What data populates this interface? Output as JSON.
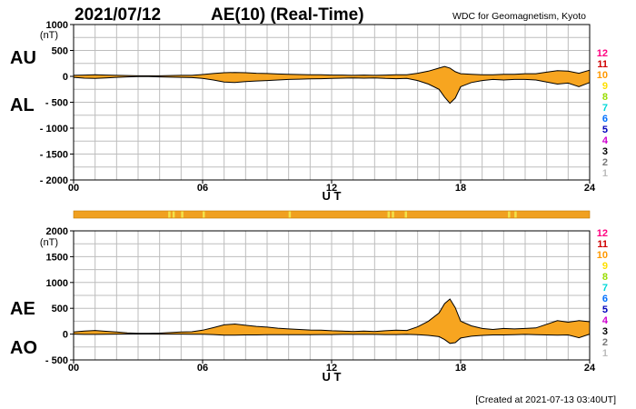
{
  "header": {
    "date": "2021/07/12",
    "title": "AE(10) (Real-Time)",
    "source": "WDC for Geomagnetism, Kyoto"
  },
  "footer": {
    "created": "[Created at 2021-07-13 03:40UT]"
  },
  "colors": {
    "fill": "#f7a520",
    "line": "#000000",
    "grid": "#bdbdbd",
    "bar_base": "#f0a020",
    "bar_mark": "#f3e24a"
  },
  "station_legend": [
    {
      "label": "12",
      "color": "#ff0080"
    },
    {
      "label": "11",
      "color": "#d00000"
    },
    {
      "label": "10",
      "color": "#ff9900"
    },
    {
      "label": "9",
      "color": "#ffe000"
    },
    {
      "label": "8",
      "color": "#99dd00"
    },
    {
      "label": "7",
      "color": "#00d8d8"
    },
    {
      "label": "6",
      "color": "#0070ff"
    },
    {
      "label": "5",
      "color": "#0000bb"
    },
    {
      "label": "4",
      "color": "#d000d0"
    },
    {
      "label": "3",
      "color": "#000000"
    },
    {
      "label": "2",
      "color": "#777777"
    },
    {
      "label": "1",
      "color": "#bbbbbb"
    }
  ],
  "chart_data": [
    {
      "type": "area",
      "panel": "AU/AL",
      "series_labels": [
        "AU",
        "AL"
      ],
      "y_unit": "(nT)",
      "ylim": [
        -2000,
        1000
      ],
      "yticks": [
        1000,
        500,
        0,
        -500,
        -1000,
        -1500,
        -2000
      ],
      "ytick_labels": [
        "1000",
        "500",
        "0",
        "- 500",
        "- 1000",
        "- 1500",
        "- 2000"
      ],
      "xlim": [
        0,
        24
      ],
      "xticks": [
        0,
        6,
        12,
        18,
        24
      ],
      "xtick_labels": [
        "00",
        "06",
        "12",
        "18",
        "24"
      ],
      "xlabel": "U T",
      "grid": true,
      "x": [
        0,
        0.5,
        1,
        1.5,
        2,
        2.5,
        3,
        3.5,
        4,
        4.5,
        5,
        5.5,
        6,
        6.5,
        7,
        7.5,
        8,
        8.5,
        9,
        9.5,
        10,
        10.5,
        11,
        11.5,
        12,
        12.5,
        13,
        13.5,
        14,
        14.5,
        15,
        15.5,
        16,
        16.5,
        17,
        17.25,
        17.5,
        17.75,
        18,
        18.5,
        19,
        19.5,
        20,
        20.5,
        21,
        21.5,
        22,
        22.5,
        23,
        23.5,
        24
      ],
      "upper": [
        20,
        25,
        30,
        25,
        20,
        15,
        10,
        10,
        10,
        15,
        20,
        20,
        35,
        55,
        70,
        75,
        70,
        60,
        55,
        45,
        40,
        35,
        30,
        30,
        25,
        25,
        20,
        25,
        20,
        25,
        30,
        30,
        60,
        100,
        160,
        190,
        160,
        90,
        50,
        40,
        30,
        30,
        40,
        40,
        50,
        50,
        80,
        110,
        100,
        60,
        120
      ],
      "lower": [
        -20,
        -35,
        -40,
        -30,
        -20,
        -10,
        -5,
        -5,
        -10,
        -15,
        -20,
        -25,
        -40,
        -70,
        -110,
        -120,
        -100,
        -90,
        -80,
        -70,
        -60,
        -55,
        -50,
        -45,
        -40,
        -35,
        -30,
        -35,
        -30,
        -40,
        -45,
        -40,
        -80,
        -150,
        -250,
        -400,
        -520,
        -420,
        -200,
        -120,
        -80,
        -60,
        -70,
        -60,
        -60,
        -70,
        -110,
        -150,
        -130,
        -200,
        -120
      ]
    },
    {
      "type": "area",
      "panel": "AE/AO",
      "series_labels": [
        "AE",
        "AO"
      ],
      "y_unit": "(nT)",
      "ylim": [
        -500,
        2000
      ],
      "yticks": [
        2000,
        1500,
        1000,
        500,
        0,
        -500
      ],
      "ytick_labels": [
        "2000",
        "1500",
        "1000",
        "500",
        "0",
        "- 500"
      ],
      "xlim": [
        0,
        24
      ],
      "xticks": [
        0,
        6,
        12,
        18,
        24
      ],
      "xtick_labels": [
        "00",
        "06",
        "12",
        "18",
        "24"
      ],
      "xlabel": "U T",
      "grid": true,
      "x": [
        0,
        0.5,
        1,
        1.5,
        2,
        2.5,
        3,
        3.5,
        4,
        4.5,
        5,
        5.5,
        6,
        6.5,
        7,
        7.5,
        8,
        8.5,
        9,
        9.5,
        10,
        10.5,
        11,
        11.5,
        12,
        12.5,
        13,
        13.5,
        14,
        14.5,
        15,
        15.5,
        16,
        16.5,
        17,
        17.25,
        17.5,
        17.75,
        18,
        18.5,
        19,
        19.5,
        20,
        20.5,
        21,
        21.5,
        22,
        22.5,
        23,
        23.5,
        24
      ],
      "upper": [
        40,
        60,
        70,
        55,
        40,
        25,
        15,
        15,
        20,
        30,
        40,
        45,
        75,
        125,
        180,
        195,
        170,
        150,
        135,
        115,
        100,
        90,
        80,
        75,
        65,
        60,
        50,
        60,
        50,
        65,
        75,
        70,
        140,
        250,
        410,
        590,
        680,
        510,
        250,
        160,
        110,
        90,
        110,
        100,
        110,
        120,
        190,
        260,
        230,
        260,
        240
      ],
      "lower": [
        0,
        -5,
        -5,
        -3,
        0,
        2,
        2,
        2,
        0,
        0,
        0,
        -3,
        -3,
        -8,
        -20,
        -22,
        -15,
        -15,
        -12,
        -12,
        -10,
        -10,
        -10,
        -8,
        -8,
        -5,
        -5,
        -5,
        -5,
        -8,
        -8,
        -5,
        -10,
        -25,
        -50,
        -105,
        -180,
        -165,
        -75,
        -40,
        -25,
        -15,
        -15,
        -10,
        -5,
        -10,
        -15,
        -20,
        -15,
        -70,
        0
      ]
    }
  ],
  "quality_bar": {
    "highlight_hours": [
      4.4,
      4.6,
      5.0,
      6.0,
      10.0,
      14.6,
      14.8,
      15.4,
      20.2,
      20.5
    ]
  }
}
